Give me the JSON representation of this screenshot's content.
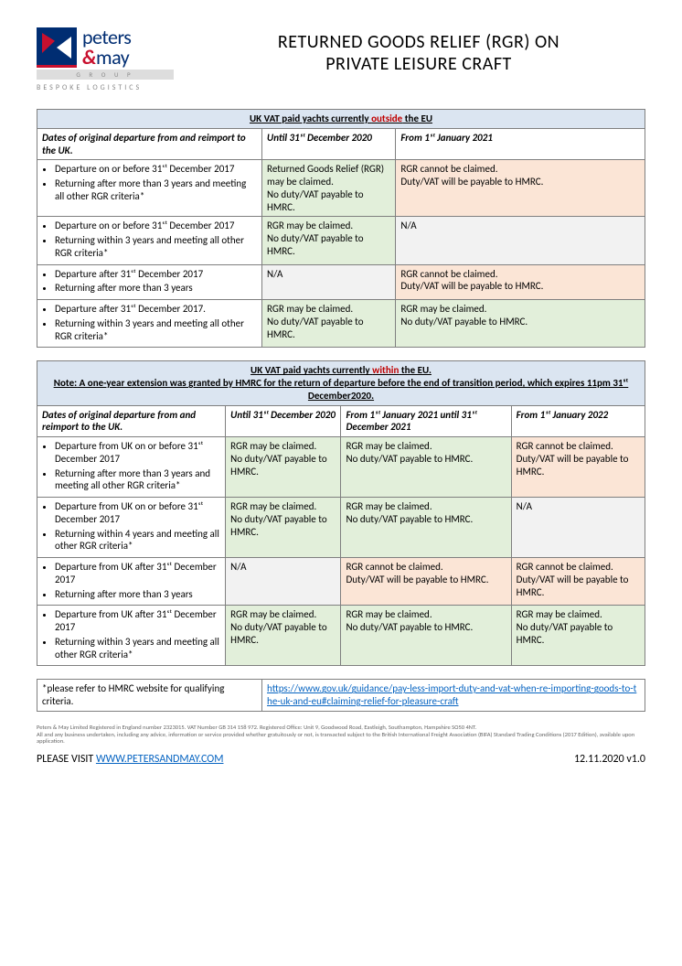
{
  "colors": {
    "banner_bg": "#dbe5f1",
    "green_bg": "#e2efda",
    "pink_bg": "#fbe5d6",
    "grey_bg": "#f2f2f2",
    "border": "#7f7f7f",
    "red_text": "#c00000",
    "link": "#0563c1",
    "brand_navy": "#002d72",
    "brand_red": "#c8102e"
  },
  "logo": {
    "line1": "peters",
    "amp": "&",
    "line2": "may",
    "group": "G R O U P",
    "tagline": "BESPOKE LOGISTICS"
  },
  "title_line1": "RETURNED GOODS RELIEF (RGR) ON",
  "title_line2": "PRIVATE LEISURE CRAFT",
  "table1": {
    "banner_pre": "UK VAT paid yachts currently ",
    "banner_red": "outside",
    "banner_post": " the EU",
    "col0": "Dates of original departure from and reimport to the UK.",
    "col1": "Until 31ˢᵗ December 2020",
    "col2": "From 1ˢᵗ January 2021",
    "rows": [
      {
        "dates": [
          "Departure on or before 31ˢᵗ December 2017",
          "Returning after more than 3 years and meeting all other RGR criteria*"
        ],
        "c1": {
          "text": "Returned Goods Relief (RGR) may be claimed.\nNo duty/VAT payable to HMRC.",
          "bg": "green"
        },
        "c2": {
          "text": "RGR cannot be claimed.\nDuty/VAT will be payable to HMRC.",
          "bg": "pink"
        }
      },
      {
        "dates": [
          "Departure on or before 31ˢᵗ December 2017",
          "Returning within 3 years and meeting all other RGR criteria*"
        ],
        "c1": {
          "text": "RGR may be claimed.\nNo duty/VAT payable to HMRC.",
          "bg": "green"
        },
        "c2": {
          "text": "N/A",
          "bg": "grey"
        }
      },
      {
        "dates": [
          "Departure after 31ˢᵗ December 2017",
          "Returning after more than 3 years"
        ],
        "c1": {
          "text": "N/A",
          "bg": "grey"
        },
        "c2": {
          "text": "RGR cannot be claimed.\nDuty/VAT will be payable to HMRC.",
          "bg": "pink"
        }
      },
      {
        "dates": [
          "Departure after 31ˢᵗ December 2017.",
          "Returning within 3 years and meeting all other RGR criteria*"
        ],
        "c1": {
          "text": "RGR may be claimed.\nNo duty/VAT payable to HMRC.",
          "bg": "green"
        },
        "c2": {
          "text": "RGR may be claimed.\nNo duty/VAT payable to HMRC.",
          "bg": "green"
        }
      }
    ]
  },
  "table2": {
    "banner_pre": "UK VAT paid yachts currently ",
    "banner_red": "within",
    "banner_post": " the EU.",
    "note_label": "Note:",
    "note_text": " A one-year extension was granted by HMRC for the return of departure before the end of transition period, which expires 11pm 31ˢᵗ December2020.",
    "col0": "Dates of original departure from and reimport to the UK.",
    "col1": "Until 31ˢᵗ December 2020",
    "col2": "From 1ˢᵗ January 2021 until 31ˢᵗ December 2021",
    "col3": "From 1ˢᵗ January 2022",
    "rows": [
      {
        "dates": [
          "Departure from UK on or before 31ˢᵗ December 2017",
          "Returning after more than 3 years and meeting all other RGR criteria*"
        ],
        "c1": {
          "text": "RGR may be claimed.\nNo duty/VAT payable to HMRC.",
          "bg": "green"
        },
        "c2": {
          "text": "RGR may be claimed.\nNo duty/VAT payable to HMRC.",
          "bg": "green"
        },
        "c3": {
          "text": "RGR cannot be claimed.\nDuty/VAT will be payable to HMRC.",
          "bg": "pink"
        }
      },
      {
        "dates": [
          "Departure from UK on or before 31ˢᵗ December 2017",
          "Returning within 4 years and meeting all other RGR criteria*"
        ],
        "c1": {
          "text": "RGR may be claimed.\nNo duty/VAT payable to HMRC.",
          "bg": "green"
        },
        "c2": {
          "text": "RGR may be claimed.\nNo duty/VAT payable to HMRC.",
          "bg": "green"
        },
        "c3": {
          "text": "N/A",
          "bg": "grey"
        }
      },
      {
        "dates": [
          "Departure from UK after 31ˢᵗ December 2017",
          "Returning after more than 3 years"
        ],
        "c1": {
          "text": "N/A",
          "bg": "grey"
        },
        "c2": {
          "text": "RGR cannot be claimed.\nDuty/VAT will be payable to HMRC.",
          "bg": "pink"
        },
        "c3": {
          "text": "RGR cannot be claimed.\nDuty/VAT will be payable to HMRC.",
          "bg": "pink"
        }
      },
      {
        "dates": [
          "Departure from UK after 31ˢᵗ December 2017",
          "Returning within 3 years and meeting all other RGR criteria*"
        ],
        "c1": {
          "text": "RGR may be claimed.\nNo duty/VAT payable to HMRC.",
          "bg": "green"
        },
        "c2": {
          "text": "RGR may be claimed.\nNo duty/VAT payable to HMRC.",
          "bg": "green"
        },
        "c3": {
          "text": "RGR may be claimed.\nNo duty/VAT payable to HMRC.",
          "bg": "green"
        }
      }
    ]
  },
  "footnote": {
    "label": "*please refer to HMRC website for qualifying criteria.",
    "url": "https://www.gov.uk/guidance/pay-less-import-duty-and-vat-when-re-importing-goods-to-the-uk-and-eu#claiming-relief-for-pleasure-craft"
  },
  "fineprint": [
    "Peters & May Limited Registered in England number 2323015.  VAT Number GB 314 158 972.  Registered Office: Unit 9, Goodwood Road, Eastleigh, Southampton, Hampshire SO50 4NT.",
    "All and any business undertaken, including any advice, information or service provided whether gratuitously or not, is transacted subject to the British International Freight Association (BIFA) Standard Trading Conditions (2017 Edition), available upon application."
  ],
  "footer": {
    "left_pre": "PLEASE VISIT ",
    "left_url": "WWW.PETERSANDMAY.COM",
    "right": "12.11.2020 v1.0"
  }
}
